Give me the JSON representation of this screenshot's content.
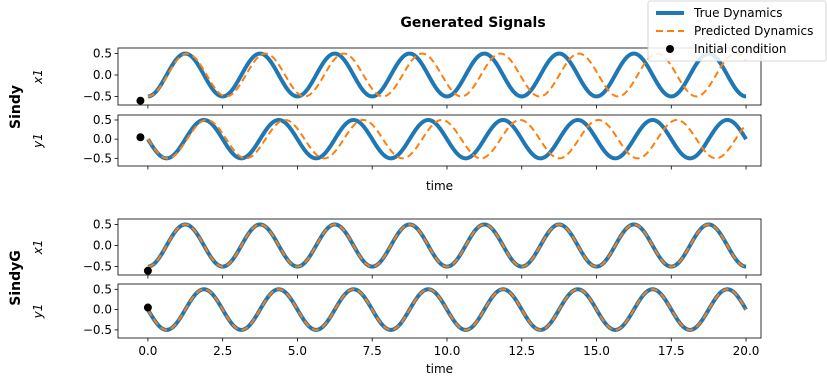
{
  "chart_data": {
    "type": "line",
    "title": "Generated Signals",
    "colors": {
      "true": "#1f77b4",
      "pred": "#ff7f0e",
      "init": "#000000"
    },
    "legend": {
      "placement": "top-right",
      "entries": [
        "True Dynamics",
        "Predicted Dynamics",
        "Initial condition"
      ]
    },
    "xlim": [
      -1.0,
      20.5
    ],
    "xticks": [
      0.0,
      2.5,
      5.0,
      7.5,
      10.0,
      12.5,
      15.0,
      17.5,
      20.0
    ],
    "xtick_labels": [
      "0.0",
      "2.5",
      "5.0",
      "7.5",
      "10.0",
      "12.5",
      "15.0",
      "17.5",
      "20.0"
    ],
    "xlabel": "time",
    "yticks": [
      -0.5,
      0.0,
      0.5
    ],
    "ytick_labels": [
      "−0.5",
      "0.0",
      "0.5"
    ],
    "ylim": [
      -0.7,
      0.63
    ],
    "signal": {
      "amplitude": 0.5,
      "period": 2.5,
      "t_start": 0.0,
      "t_end": 20.0
    },
    "groups": [
      {
        "name": "Sindy",
        "panels": [
          {
            "ylabel": "x1",
            "initial_condition": {
              "t": -0.25,
              "y": -0.6
            },
            "pred_period": 2.62,
            "show_xticklabels": false
          },
          {
            "ylabel": "y1",
            "initial_condition": {
              "t": -0.25,
              "y": 0.05
            },
            "pred_period": 2.62,
            "show_xticklabels": false
          }
        ]
      },
      {
        "name": "SindyG",
        "panels": [
          {
            "ylabel": "x1",
            "initial_condition": {
              "t": 0.0,
              "y": -0.6
            },
            "pred_period": 2.5,
            "show_xticklabels": false
          },
          {
            "ylabel": "y1",
            "initial_condition": {
              "t": 0.0,
              "y": 0.05
            },
            "pred_period": 2.5,
            "show_xticklabels": true
          }
        ]
      }
    ]
  }
}
